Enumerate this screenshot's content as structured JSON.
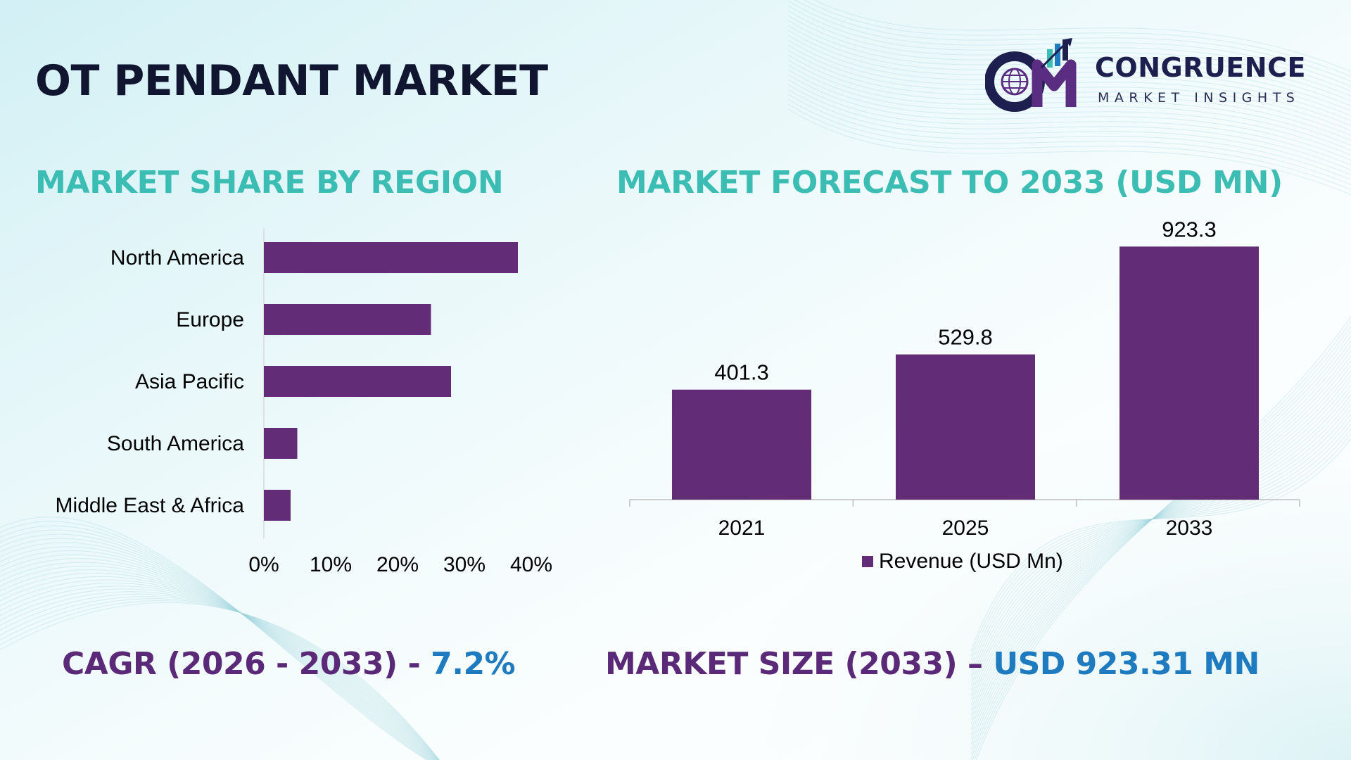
{
  "page": {
    "title": "OT PENDANT MARKET"
  },
  "logo": {
    "name": "CONGRUENCE",
    "tagline": "MARKET INSIGHTS",
    "mark_letters": "CM",
    "icon": "globe-bar-chart-logo-icon"
  },
  "colors": {
    "bar": "#632c77",
    "title_teal": "#3cbdb4",
    "title_dark": "#101530",
    "kpi_purple": "#5a2a78",
    "kpi_blue": "#1f7bbf"
  },
  "left_section": {
    "title": "MARKET SHARE BY REGION"
  },
  "right_section": {
    "title": "MARKET FORECAST TO 2033 (USD MN)"
  },
  "kpis": {
    "cagr_label": "CAGR (2026 - 2033) - ",
    "cagr_value": "7.2%",
    "size_label": "MARKET SIZE (2033) – ",
    "size_value": "USD 923.31 MN"
  },
  "chart_data": [
    {
      "type": "bar",
      "orientation": "horizontal",
      "title": "MARKET SHARE BY REGION",
      "categories": [
        "North America",
        "Europe",
        "Asia Pacific",
        "South America",
        "Middle East & Africa"
      ],
      "values": [
        38,
        25,
        28,
        5,
        4
      ],
      "unit": "%",
      "xlim": [
        0,
        40
      ],
      "xticks": [
        "0%",
        "10%",
        "20%",
        "30%",
        "40%"
      ],
      "grid": false,
      "legend": "none"
    },
    {
      "type": "bar",
      "orientation": "vertical",
      "title": "MARKET FORECAST TO 2033 (USD MN)",
      "categories": [
        "2021",
        "2025",
        "2033"
      ],
      "series": [
        {
          "name": "Revenue (USD Mn)",
          "values": [
            401.3,
            529.8,
            923.3
          ]
        }
      ],
      "data_labels": [
        "401.3",
        "529.8",
        "923.3"
      ],
      "ylim": [
        0,
        1000
      ],
      "grid": false,
      "legend": "bottom-center"
    }
  ]
}
